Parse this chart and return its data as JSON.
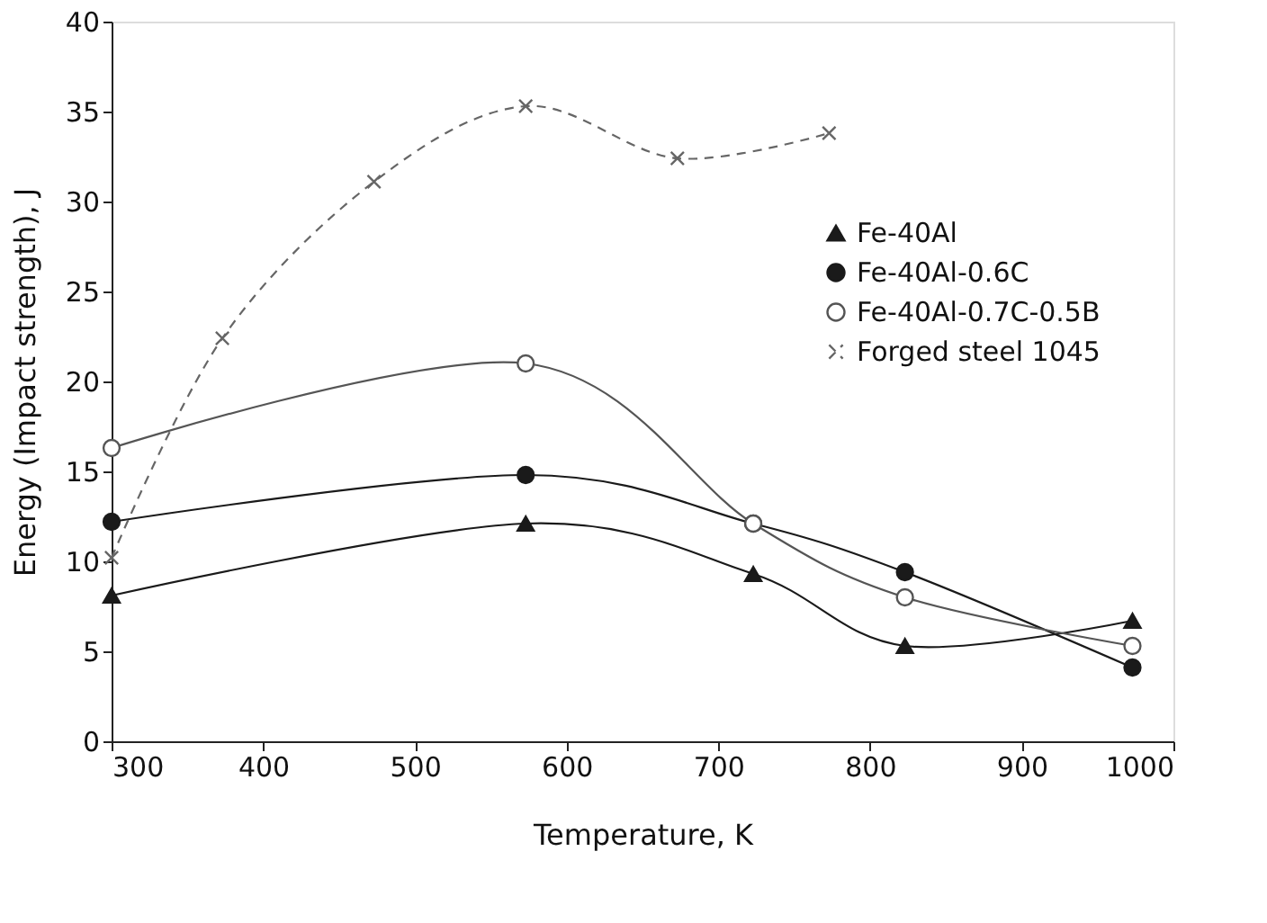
{
  "chart_data": {
    "type": "line",
    "xlabel": "Temperature, K",
    "ylabel": "Energy (Impact strength), J",
    "xlim": [
      300,
      1000
    ],
    "xticks": [
      300,
      400,
      500,
      600,
      700,
      800,
      900,
      1000
    ],
    "ylim": [
      0,
      40
    ],
    "yticks": [
      0,
      5,
      10,
      15,
      20,
      25,
      30,
      35,
      40
    ],
    "grid": false,
    "legend": "top right",
    "series": [
      {
        "name": "Fe-40Al",
        "color": "#1a1a1a",
        "marker": "triangle",
        "line_style": "solid",
        "x": [
          300,
          573,
          723,
          823,
          973
        ],
        "values": [
          8.1,
          12.1,
          9.3,
          5.3,
          6.7
        ]
      },
      {
        "name": "Fe-40Al-0.6C",
        "color": "#1a1a1a",
        "marker": "circle",
        "line_style": "solid",
        "x": [
          300,
          573,
          723,
          823,
          973
        ],
        "values": [
          12.2,
          14.8,
          12.1,
          9.4,
          4.1
        ]
      },
      {
        "name": "Fe-40Al-0.7C-0.5B",
        "color": "#555555",
        "marker": "open circle",
        "line_style": "solid",
        "x": [
          300,
          573,
          723,
          823,
          973
        ],
        "values": [
          16.3,
          21.0,
          12.1,
          8.0,
          5.3
        ]
      },
      {
        "name": "Forged steel 1045",
        "color": "#666666",
        "marker": "cross",
        "line_style": "dashed",
        "x": [
          300,
          373,
          473,
          573,
          673,
          773
        ],
        "values": [
          10.2,
          22.4,
          31.1,
          35.3,
          32.4,
          33.8
        ]
      }
    ]
  }
}
